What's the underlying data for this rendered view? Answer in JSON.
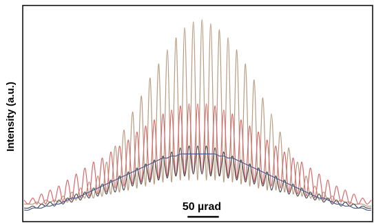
{
  "chart_data": {
    "type": "line",
    "title": "",
    "xlabel": "",
    "ylabel": "Intensity (a.u.)",
    "scale_bar": {
      "label": "50 µrad",
      "length": 50,
      "unit": "µrad"
    },
    "xlim": [
      -100,
      100
    ],
    "ylim": [
      0,
      1
    ],
    "grid": false,
    "legend": "none",
    "x_step": 2.5,
    "x": [
      -100,
      -97.5,
      -95,
      -92.5,
      -90,
      -87.5,
      -85,
      -82.5,
      -80,
      -77.5,
      -75,
      -72.5,
      -70,
      -67.5,
      -65,
      -62.5,
      -60,
      -57.5,
      -55,
      -52.5,
      -50,
      -47.5,
      -45,
      -42.5,
      -40,
      -37.5,
      -35,
      -32.5,
      -30,
      -27.5,
      -25,
      -22.5,
      -20,
      -17.5,
      -15,
      -12.5,
      -10,
      -7.5,
      -5,
      -2.5,
      0,
      2.5,
      5,
      7.5,
      10,
      12.5,
      15,
      17.5,
      20,
      22.5,
      25,
      27.5,
      30,
      32.5,
      35,
      37.5,
      40,
      42.5,
      45,
      47.5,
      50,
      52.5,
      55,
      57.5,
      60,
      62.5,
      65,
      67.5,
      70,
      72.5,
      75,
      77.5,
      80,
      82.5,
      85,
      87.5,
      90,
      92.5,
      95,
      97.5,
      100
    ],
    "series": [
      {
        "color": "#b89a7e",
        "values": [
          0.05,
          0.05,
          0.05,
          0.06,
          0.05,
          0.07,
          0.06,
          0.07,
          0.06,
          0.09,
          0.06,
          0.11,
          0.07,
          0.13,
          0.08,
          0.16,
          0.08,
          0.19,
          0.09,
          0.26,
          0.1,
          0.34,
          0.11,
          0.42,
          0.12,
          0.51,
          0.13,
          0.59,
          0.14,
          0.68,
          0.15,
          0.75,
          0.16,
          0.82,
          0.16,
          0.88,
          0.17,
          0.93,
          0.17,
          0.96,
          0.17,
          0.97,
          0.17,
          0.95,
          0.17,
          0.92,
          0.16,
          0.88,
          0.16,
          0.82,
          0.15,
          0.75,
          0.14,
          0.67,
          0.13,
          0.58,
          0.12,
          0.5,
          0.12,
          0.41,
          0.11,
          0.33,
          0.1,
          0.26,
          0.09,
          0.19,
          0.08,
          0.14,
          0.07,
          0.11,
          0.07,
          0.09,
          0.06,
          0.07,
          0.06,
          0.06,
          0.05,
          0.05,
          0.05,
          0.04,
          0.04
        ]
      },
      {
        "color": "#d9666a",
        "values": [
          0.07,
          0.05,
          0.08,
          0.05,
          0.1,
          0.05,
          0.12,
          0.06,
          0.14,
          0.06,
          0.17,
          0.07,
          0.2,
          0.08,
          0.23,
          0.09,
          0.26,
          0.1,
          0.28,
          0.11,
          0.31,
          0.13,
          0.34,
          0.14,
          0.37,
          0.15,
          0.41,
          0.16,
          0.44,
          0.17,
          0.47,
          0.18,
          0.5,
          0.19,
          0.52,
          0.19,
          0.54,
          0.2,
          0.55,
          0.2,
          0.55,
          0.2,
          0.55,
          0.2,
          0.54,
          0.19,
          0.52,
          0.19,
          0.5,
          0.18,
          0.47,
          0.17,
          0.44,
          0.16,
          0.41,
          0.15,
          0.37,
          0.14,
          0.34,
          0.13,
          0.31,
          0.11,
          0.28,
          0.1,
          0.26,
          0.09,
          0.23,
          0.08,
          0.2,
          0.07,
          0.17,
          0.06,
          0.14,
          0.06,
          0.12,
          0.05,
          0.1,
          0.05,
          0.08,
          0.05,
          0.07
        ]
      },
      {
        "color": "#4a4a4a",
        "values": [
          0.03,
          0.03,
          0.04,
          0.03,
          0.05,
          0.04,
          0.06,
          0.04,
          0.07,
          0.05,
          0.08,
          0.06,
          0.1,
          0.07,
          0.11,
          0.08,
          0.13,
          0.09,
          0.15,
          0.1,
          0.17,
          0.11,
          0.19,
          0.12,
          0.21,
          0.14,
          0.23,
          0.15,
          0.25,
          0.16,
          0.27,
          0.17,
          0.29,
          0.18,
          0.31,
          0.19,
          0.33,
          0.19,
          0.34,
          0.2,
          0.34,
          0.2,
          0.34,
          0.19,
          0.33,
          0.19,
          0.31,
          0.18,
          0.29,
          0.17,
          0.27,
          0.16,
          0.25,
          0.15,
          0.23,
          0.14,
          0.21,
          0.12,
          0.19,
          0.11,
          0.17,
          0.1,
          0.15,
          0.09,
          0.13,
          0.08,
          0.11,
          0.07,
          0.1,
          0.06,
          0.08,
          0.05,
          0.07,
          0.04,
          0.06,
          0.04,
          0.05,
          0.03,
          0.04,
          0.03,
          0.03
        ]
      },
      {
        "color": "#4a5a8c",
        "values": [
          0.02,
          0.02,
          0.03,
          0.03,
          0.03,
          0.04,
          0.04,
          0.05,
          0.05,
          0.06,
          0.07,
          0.08,
          0.08,
          0.09,
          0.1,
          0.11,
          0.12,
          0.13,
          0.14,
          0.15,
          0.16,
          0.17,
          0.18,
          0.19,
          0.2,
          0.21,
          0.22,
          0.23,
          0.24,
          0.25,
          0.26,
          0.27,
          0.28,
          0.28,
          0.29,
          0.29,
          0.3,
          0.3,
          0.3,
          0.3,
          0.3,
          0.3,
          0.3,
          0.3,
          0.3,
          0.29,
          0.29,
          0.28,
          0.28,
          0.27,
          0.26,
          0.25,
          0.24,
          0.23,
          0.22,
          0.21,
          0.2,
          0.19,
          0.18,
          0.17,
          0.16,
          0.15,
          0.14,
          0.13,
          0.12,
          0.11,
          0.1,
          0.09,
          0.08,
          0.08,
          0.07,
          0.06,
          0.05,
          0.05,
          0.04,
          0.04,
          0.03,
          0.03,
          0.03,
          0.02,
          0.02
        ]
      }
    ]
  }
}
